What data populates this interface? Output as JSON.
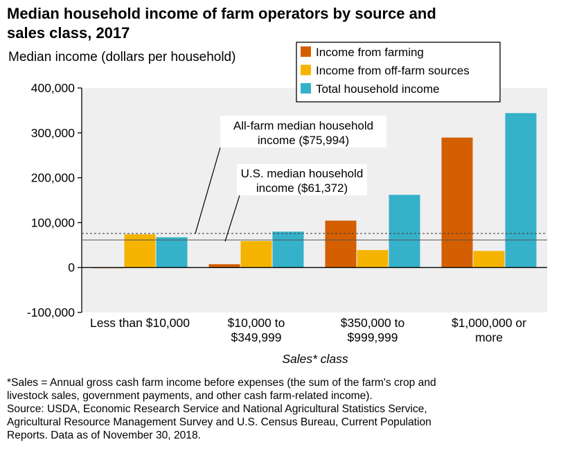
{
  "title_lines": [
    "Median household income of farm operators by source and",
    "sales class, 2017"
  ],
  "ylabel": "Median income (dollars per household)",
  "xlabel": "Sales* class",
  "legend": [
    {
      "label": "Income from farming",
      "color": "#d45f00"
    },
    {
      "label": "Income from off-farm sources",
      "color": "#f5b400"
    },
    {
      "label": "Total household income",
      "color": "#35b1c9"
    }
  ],
  "yticks": [
    "400,000",
    "300,000",
    "200,000",
    "100,000",
    "0",
    "-100,000"
  ],
  "category_lines": [
    [
      "Less than $10,000"
    ],
    [
      "$10,000 to",
      "$349,999"
    ],
    [
      "$350,000 to",
      "$999,999"
    ],
    [
      "$1,000,000 or",
      "more"
    ]
  ],
  "annotations": {
    "all_farm": [
      "All-farm median household",
      "income ($75,994)"
    ],
    "us": [
      "U.S. median household",
      "income ($61,372)"
    ]
  },
  "footnote_lines": [
    "*Sales = Annual gross cash farm income before expenses (the sum of the farm's crop and",
    "livestock sales, government payments, and other cash farm-related income).",
    "Source: USDA, Economic Research Service and National Agricultural Statistics Service,",
    "Agricultural Resource Management Survey and U.S. Census Bureau, Current Population",
    "Reports. Data as of November 30, 2018."
  ],
  "chart_data": {
    "type": "bar",
    "title": "Median household income of farm operators by source and sales class, 2017",
    "xlabel": "Sales* class",
    "ylabel": "Median income (dollars per household)",
    "categories": [
      "Less than $10,000",
      "$10,000 to $349,999",
      "$350,000 to $999,999",
      "$1,000,000 or more"
    ],
    "series": [
      {
        "name": "Income from farming",
        "color": "#d45f00",
        "values": [
          -1500,
          7500,
          104500,
          289500
        ]
      },
      {
        "name": "Income from off-farm sources",
        "color": "#f5b400",
        "values": [
          74000,
          59000,
          39000,
          37000
        ]
      },
      {
        "name": "Total household income",
        "color": "#35b1c9",
        "values": [
          67500,
          80000,
          162000,
          344000
        ]
      }
    ],
    "reference_lines": [
      {
        "label": "All-farm median household income ($75,994)",
        "value": 75994,
        "style": "dashed"
      },
      {
        "label": "U.S. median household income ($61,372)",
        "value": 61372,
        "style": "solid"
      }
    ],
    "ylim": [
      -100000,
      400000
    ],
    "legend_position": "top-right",
    "grid": false
  }
}
